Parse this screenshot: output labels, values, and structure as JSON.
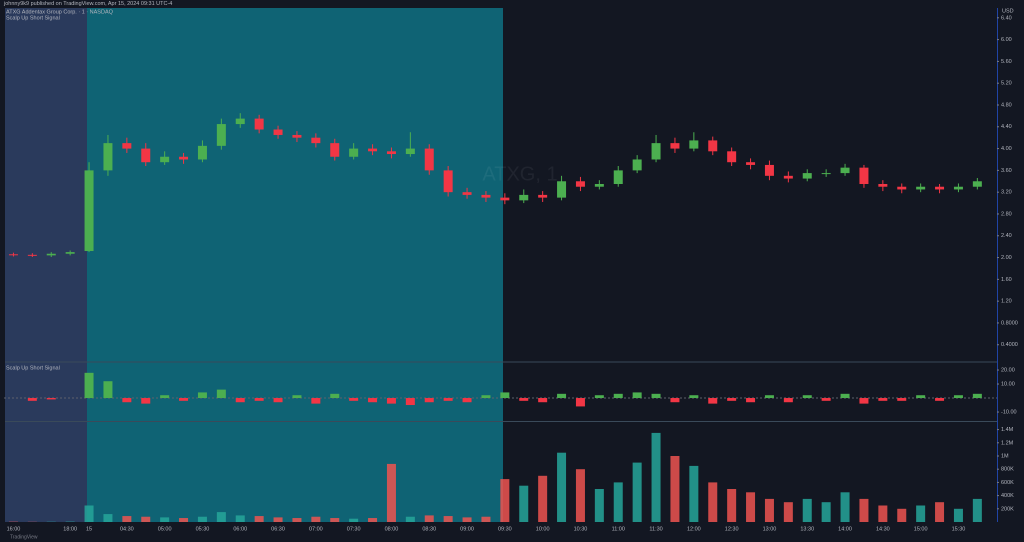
{
  "header": {
    "author": "johnny9k9 published on TradingView.com, Apr 15, 2024 09:31 UTC-4",
    "symbol": "ATXG Addentax Group Corp. · 1 · NASDAQ",
    "indicator": "Scalp Up Short Signal",
    "watermark": "ATXG, 1",
    "currency": "USD",
    "footer": "TradingView"
  },
  "chart_data": [
    {
      "type": "candlestick",
      "ylim": [
        0.12,
        6.58
      ],
      "yticks": [
        {
          "value": 6.4,
          "label": "6.40"
        },
        {
          "value": 6,
          "label": "6.00"
        },
        {
          "value": 5.6,
          "label": "5.60"
        },
        {
          "value": 5.2,
          "label": "5.20"
        },
        {
          "value": 4.8,
          "label": "4.80"
        },
        {
          "value": 4.4,
          "label": "4.40"
        },
        {
          "value": 4,
          "label": "4.00"
        },
        {
          "value": 3.6,
          "label": "3.60"
        },
        {
          "value": 3.2,
          "label": "3.20"
        },
        {
          "value": 2.8,
          "label": "2.80"
        },
        {
          "value": 2.4,
          "label": "2.40"
        },
        {
          "value": 2,
          "label": "2.00"
        },
        {
          "value": 1.6,
          "label": "1.60"
        },
        {
          "value": 1.2,
          "label": "1.20"
        },
        {
          "value": 0.8,
          "label": "0.8000"
        },
        {
          "value": 0.4,
          "label": "0.4000"
        }
      ],
      "categories": [
        "16:00",
        null,
        null,
        "18:00",
        "15",
        null,
        "04:30",
        null,
        "05:00",
        null,
        "05:30",
        null,
        "06:00",
        null,
        "06:30",
        null,
        "07:00",
        null,
        "07:30",
        null,
        "08:00",
        null,
        "08:30",
        null,
        "09:00",
        null,
        "09:30",
        null,
        "10:00",
        null,
        "10:30",
        null,
        "11:00",
        null,
        "11:30",
        null,
        "12:00",
        null,
        "12:30",
        null,
        "13:00",
        null,
        "13:30",
        null,
        "14:00",
        null,
        "14:30",
        null,
        "15:00",
        null,
        "15:30",
        null
      ],
      "up_color": "#4caf50",
      "down_color": "#f23645",
      "series": [
        {
          "name": "ATXG",
          "open": [
            2.06,
            2.05,
            2.04,
            2.07,
            2.12,
            3.6,
            4.1,
            4.0,
            3.75,
            3.85,
            3.8,
            4.05,
            4.45,
            4.55,
            4.35,
            4.25,
            4.2,
            4.1,
            3.85,
            4.0,
            3.95,
            3.9,
            4.0,
            3.6,
            3.2,
            3.15,
            3.1,
            3.05,
            3.15,
            3.1,
            3.4,
            3.3,
            3.35,
            3.6,
            3.8,
            4.1,
            4.0,
            4.15,
            3.95,
            3.75,
            3.7,
            3.5,
            3.45,
            3.55,
            3.55,
            3.65,
            3.35,
            3.3,
            3.25,
            3.3,
            3.25,
            3.3
          ],
          "high": [
            2.09,
            2.08,
            2.1,
            2.13,
            3.75,
            4.25,
            4.2,
            4.1,
            3.95,
            3.92,
            4.15,
            4.55,
            4.65,
            4.62,
            4.42,
            4.32,
            4.28,
            4.18,
            4.1,
            4.08,
            4.02,
            4.3,
            4.08,
            3.68,
            3.28,
            3.22,
            3.18,
            3.25,
            3.22,
            3.5,
            3.48,
            3.42,
            3.68,
            3.88,
            4.25,
            4.2,
            4.3,
            4.22,
            4.02,
            3.82,
            3.78,
            3.58,
            3.62,
            3.62,
            3.72,
            3.7,
            3.42,
            3.36,
            3.36,
            3.35,
            3.36,
            3.46
          ],
          "low": [
            2.02,
            2.01,
            2.01,
            2.04,
            2.1,
            3.5,
            3.92,
            3.68,
            3.7,
            3.72,
            3.75,
            3.98,
            4.38,
            4.28,
            4.18,
            4.12,
            4.02,
            3.78,
            3.8,
            3.88,
            3.82,
            3.85,
            3.52,
            3.12,
            3.08,
            3.02,
            2.98,
            3.0,
            3.02,
            3.05,
            3.22,
            3.25,
            3.3,
            3.55,
            3.75,
            3.92,
            3.95,
            3.88,
            3.68,
            3.62,
            3.42,
            3.38,
            3.4,
            3.48,
            3.5,
            3.28,
            3.22,
            3.18,
            3.2,
            3.18,
            3.2,
            3.25
          ],
          "close": [
            2.05,
            2.04,
            2.07,
            2.1,
            3.6,
            4.1,
            4.0,
            3.75,
            3.85,
            3.8,
            4.05,
            4.45,
            4.55,
            4.35,
            4.25,
            4.2,
            4.1,
            3.85,
            4.0,
            3.95,
            3.9,
            4.0,
            3.6,
            3.2,
            3.15,
            3.1,
            3.05,
            3.15,
            3.1,
            3.4,
            3.3,
            3.35,
            3.6,
            3.8,
            4.1,
            4.0,
            4.15,
            3.95,
            3.75,
            3.7,
            3.5,
            3.45,
            3.55,
            3.55,
            3.65,
            3.35,
            3.3,
            3.25,
            3.3,
            3.25,
            3.3,
            3.4
          ]
        }
      ]
    },
    {
      "type": "bar",
      "ylim": [
        -15.7,
        24.3
      ],
      "yticks": [
        {
          "value": 20,
          "label": "20.00"
        },
        {
          "value": 10,
          "label": "10.00"
        },
        {
          "value": -10,
          "label": "-10.00"
        }
      ],
      "up_color": "#4caf50",
      "down_color": "#f23645",
      "values": [
        0,
        -2,
        -1,
        0,
        18,
        12,
        -3,
        -4,
        2,
        -2,
        4,
        6,
        -3,
        -2,
        -3,
        2,
        -4,
        3,
        -2,
        -3,
        -4,
        -5,
        -3,
        -2,
        -3,
        2,
        4,
        -2,
        -3,
        3,
        -6,
        2,
        3,
        4,
        3,
        -3,
        2,
        -4,
        -2,
        -3,
        2,
        -3,
        2,
        -2,
        3,
        -4,
        -2,
        -2,
        2,
        -2,
        2,
        3
      ]
    },
    {
      "type": "volume",
      "ylim": [
        0,
        1500000
      ],
      "yticks": [
        {
          "value": 1400000,
          "label": "1.4M"
        },
        {
          "value": 1200000,
          "label": "1.2M"
        },
        {
          "value": 1000000,
          "label": "1M"
        },
        {
          "value": 800000,
          "label": "800K"
        },
        {
          "value": 600000,
          "label": "600K"
        },
        {
          "value": 400000,
          "label": "400K"
        },
        {
          "value": 200000,
          "label": "200K"
        }
      ],
      "up_color": "#26a69a",
      "down_color": "#ef5350",
      "values": [
        5000,
        3000,
        4000,
        6000,
        250000,
        120000,
        90000,
        80000,
        70000,
        60000,
        80000,
        150000,
        100000,
        90000,
        70000,
        60000,
        80000,
        60000,
        50000,
        60000,
        880000,
        80000,
        100000,
        90000,
        70000,
        80000,
        650000,
        550000,
        700000,
        1050000,
        800000,
        500000,
        600000,
        900000,
        1350000,
        1000000,
        850000,
        600000,
        500000,
        450000,
        350000,
        300000,
        350000,
        300000,
        450000,
        350000,
        250000,
        200000,
        250000,
        300000,
        200000,
        350000
      ]
    }
  ]
}
